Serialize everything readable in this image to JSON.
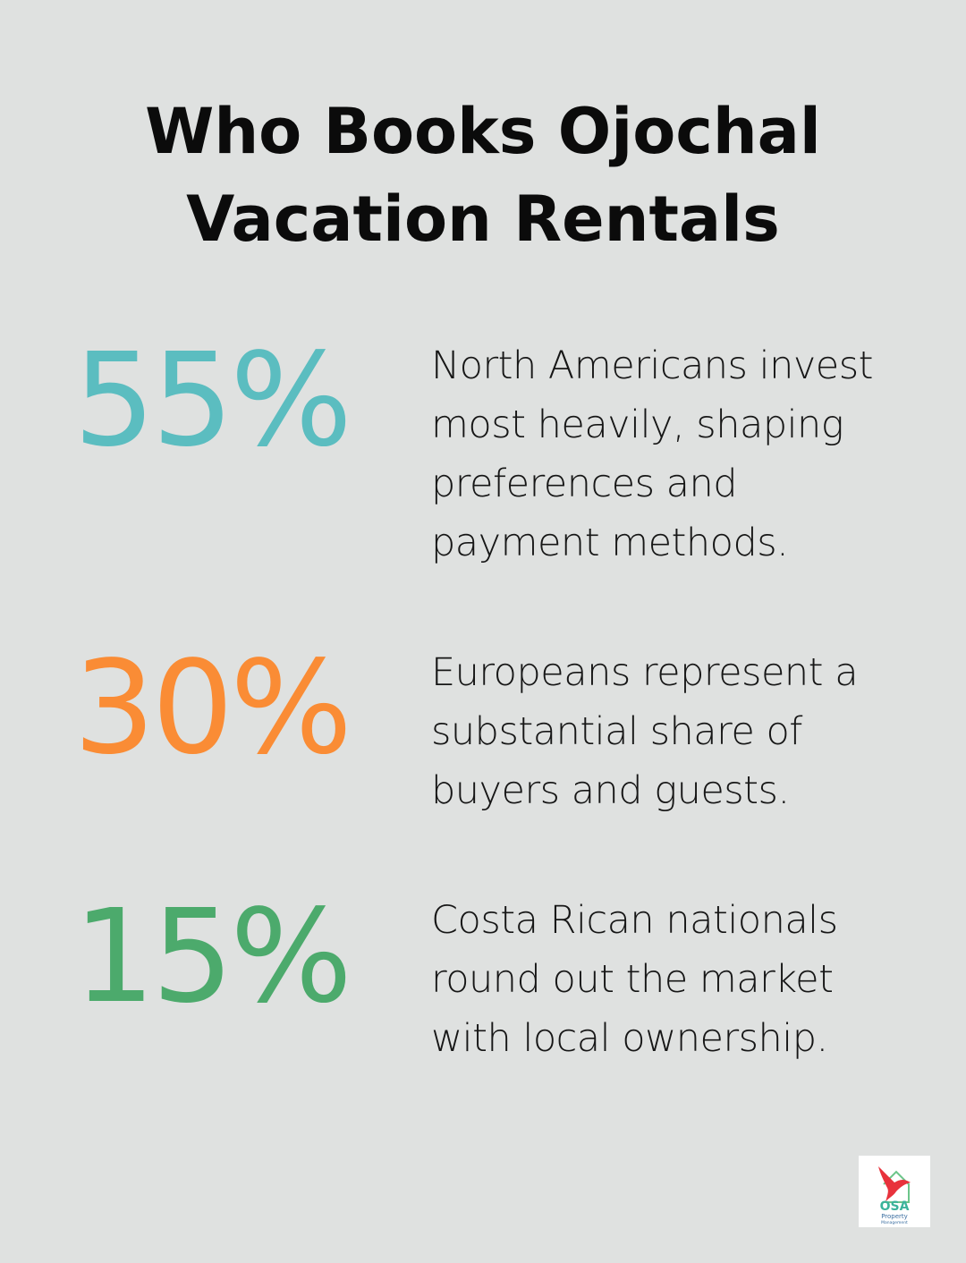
{
  "title": "Who Books Ojochal Vacation Rentals",
  "stats": [
    {
      "value": "55%",
      "color": "#5bbdc0",
      "text": "North Americans invest most heavily, shaping preferences and payment methods."
    },
    {
      "value": "30%",
      "color": "#fa8c35",
      "text": "Europeans represent a substantial share of buyers and guests."
    },
    {
      "value": "15%",
      "color": "#4caa6c",
      "text": "Costa Rican nationals round out the market with local ownership."
    }
  ],
  "logo": {
    "name": "OSA",
    "sub1": "Property",
    "sub2": "Management"
  }
}
